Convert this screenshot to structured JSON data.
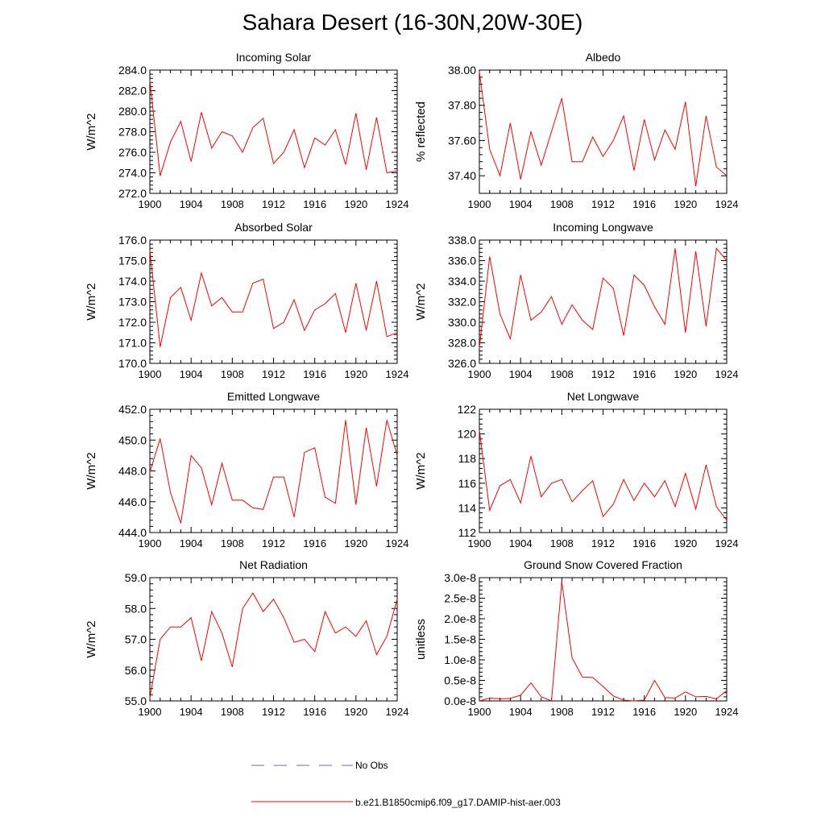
{
  "title": "Sahara Desert (16-30N,20W-30E)",
  "colors": {
    "model": "#ff0000",
    "obs": "#6a6ad8",
    "axis": "#000000"
  },
  "legend": {
    "obs_label": "No Obs",
    "model_label": "b.e21.B1850cmip6.f09_g17.DAMIP-hist-aer.003"
  },
  "chart_data": [
    {
      "type": "line",
      "title": "Incoming Solar",
      "ylabel": "W/m^2",
      "xlim": [
        1900,
        1924
      ],
      "ylim": [
        272,
        284
      ],
      "xticks": [
        1900,
        1904,
        1908,
        1912,
        1916,
        1920,
        1924
      ],
      "xtick_labels": [
        "1900",
        "1904",
        "1908",
        "1912",
        "1916",
        "1920",
        "1924"
      ],
      "yticks": [
        272,
        274,
        276,
        278,
        280,
        282,
        284
      ],
      "ytick_labels": [
        "272.0",
        "274.0",
        "276.0",
        "278.0",
        "280.0",
        "282.0",
        "284.0"
      ],
      "x": [
        1900,
        1901,
        1902,
        1903,
        1904,
        1905,
        1906,
        1907,
        1908,
        1909,
        1910,
        1911,
        1912,
        1913,
        1914,
        1915,
        1916,
        1917,
        1918,
        1919,
        1920,
        1921,
        1922,
        1923,
        1924
      ],
      "series": [
        {
          "name": "b.e21.B1850cmip6.f09_g17.DAMIP-hist-aer.003",
          "values": [
            283.0,
            273.7,
            277.0,
            279.0,
            275.1,
            279.9,
            276.4,
            278.0,
            277.6,
            276.0,
            278.4,
            279.3,
            274.9,
            276.0,
            278.2,
            274.5,
            277.4,
            276.7,
            278.2,
            274.8,
            279.8,
            274.3,
            279.4,
            274.0,
            274.2
          ]
        }
      ]
    },
    {
      "type": "line",
      "title": "Albedo",
      "ylabel": "% reflected",
      "xlim": [
        1900,
        1924
      ],
      "ylim": [
        37.3,
        38.0
      ],
      "xticks": [
        1900,
        1904,
        1908,
        1912,
        1916,
        1920,
        1924
      ],
      "xtick_labels": [
        "1900",
        "1904",
        "1908",
        "1912",
        "1916",
        "1920",
        "1924"
      ],
      "yticks": [
        37.4,
        37.6,
        37.8,
        38.0
      ],
      "ytick_labels": [
        "37.40",
        "37.60",
        "37.80",
        "38.00"
      ],
      "x": [
        1900,
        1901,
        1902,
        1903,
        1904,
        1905,
        1906,
        1907,
        1908,
        1909,
        1910,
        1911,
        1912,
        1913,
        1914,
        1915,
        1916,
        1917,
        1918,
        1919,
        1920,
        1921,
        1922,
        1923,
        1924
      ],
      "series": [
        {
          "name": "b.e21.B1850cmip6.f09_g17.DAMIP-hist-aer.003",
          "values": [
            37.99,
            37.55,
            37.4,
            37.7,
            37.38,
            37.65,
            37.46,
            37.65,
            37.84,
            37.48,
            37.48,
            37.62,
            37.51,
            37.6,
            37.74,
            37.43,
            37.72,
            37.49,
            37.66,
            37.55,
            37.82,
            37.34,
            37.74,
            37.45,
            37.4
          ]
        }
      ]
    },
    {
      "type": "line",
      "title": "Absorbed Solar",
      "ylabel": "W/m^2",
      "xlim": [
        1900,
        1924
      ],
      "ylim": [
        170,
        176
      ],
      "xticks": [
        1900,
        1904,
        1908,
        1912,
        1916,
        1920,
        1924
      ],
      "xtick_labels": [
        "1900",
        "1904",
        "1908",
        "1912",
        "1916",
        "1920",
        "1924"
      ],
      "yticks": [
        170,
        171,
        172,
        173,
        174,
        175,
        176
      ],
      "ytick_labels": [
        "170.0",
        "171.0",
        "172.0",
        "173.0",
        "174.0",
        "175.0",
        "176.0"
      ],
      "x": [
        1900,
        1901,
        1902,
        1903,
        1904,
        1905,
        1906,
        1907,
        1908,
        1909,
        1910,
        1911,
        1912,
        1913,
        1914,
        1915,
        1916,
        1917,
        1918,
        1919,
        1920,
        1921,
        1922,
        1923,
        1924
      ],
      "series": [
        {
          "name": "b.e21.B1850cmip6.f09_g17.DAMIP-hist-aer.003",
          "values": [
            175.5,
            170.8,
            173.2,
            173.7,
            172.1,
            174.4,
            172.8,
            173.2,
            172.5,
            172.5,
            173.9,
            174.1,
            171.7,
            172.0,
            173.1,
            171.6,
            172.6,
            172.9,
            173.4,
            171.5,
            173.9,
            171.6,
            174.0,
            171.3,
            171.5
          ]
        }
      ]
    },
    {
      "type": "line",
      "title": "Incoming Longwave",
      "ylabel": "W/m^2",
      "xlim": [
        1900,
        1924
      ],
      "ylim": [
        326,
        338
      ],
      "xticks": [
        1900,
        1904,
        1908,
        1912,
        1916,
        1920,
        1924
      ],
      "xtick_labels": [
        "1900",
        "1904",
        "1908",
        "1912",
        "1916",
        "1920",
        "1924"
      ],
      "yticks": [
        326,
        328,
        330,
        332,
        334,
        336,
        338
      ],
      "ytick_labels": [
        "326.0",
        "328.0",
        "330.0",
        "332.0",
        "334.0",
        "336.0",
        "338.0"
      ],
      "x": [
        1900,
        1901,
        1902,
        1903,
        1904,
        1905,
        1906,
        1907,
        1908,
        1909,
        1910,
        1911,
        1912,
        1913,
        1914,
        1915,
        1916,
        1917,
        1918,
        1919,
        1920,
        1921,
        1922,
        1923,
        1924
      ],
      "series": [
        {
          "name": "b.e21.B1850cmip6.f09_g17.DAMIP-hist-aer.003",
          "values": [
            327.5,
            336.4,
            330.8,
            328.4,
            334.6,
            330.2,
            331.0,
            332.5,
            329.8,
            331.7,
            330.2,
            329.3,
            334.3,
            333.3,
            328.7,
            334.6,
            333.6,
            331.5,
            329.8,
            337.2,
            329.0,
            336.9,
            329.6,
            337.2,
            336.0
          ]
        }
      ]
    },
    {
      "type": "line",
      "title": "Emitted Longwave",
      "ylabel": "W/m^2",
      "xlim": [
        1900,
        1924
      ],
      "ylim": [
        444,
        452
      ],
      "xticks": [
        1900,
        1904,
        1908,
        1912,
        1916,
        1920,
        1924
      ],
      "xtick_labels": [
        "1900",
        "1904",
        "1908",
        "1912",
        "1916",
        "1920",
        "1924"
      ],
      "yticks": [
        444,
        446,
        448,
        450,
        452
      ],
      "ytick_labels": [
        "444.0",
        "446.0",
        "448.0",
        "450.0",
        "452.0"
      ],
      "x": [
        1900,
        1901,
        1902,
        1903,
        1904,
        1905,
        1906,
        1907,
        1908,
        1909,
        1910,
        1911,
        1912,
        1913,
        1914,
        1915,
        1916,
        1917,
        1918,
        1919,
        1920,
        1921,
        1922,
        1923,
        1924
      ],
      "series": [
        {
          "name": "b.e21.B1850cmip6.f09_g17.DAMIP-hist-aer.003",
          "values": [
            447.9,
            450.1,
            446.6,
            444.6,
            449.0,
            448.2,
            445.8,
            448.5,
            446.1,
            446.1,
            445.6,
            445.5,
            447.6,
            447.6,
            445.0,
            449.2,
            449.5,
            446.3,
            445.9,
            451.3,
            445.8,
            450.8,
            447.0,
            451.3,
            449.0
          ]
        }
      ]
    },
    {
      "type": "line",
      "title": "Net Longwave",
      "ylabel": "W/m^2",
      "xlim": [
        1900,
        1924
      ],
      "ylim": [
        112,
        122
      ],
      "xticks": [
        1900,
        1904,
        1908,
        1912,
        1916,
        1920,
        1924
      ],
      "xtick_labels": [
        "1900",
        "1904",
        "1908",
        "1912",
        "1916",
        "1920",
        "1924"
      ],
      "yticks": [
        112,
        114,
        116,
        118,
        120,
        122
      ],
      "ytick_labels": [
        "112",
        "114",
        "116",
        "118",
        "120",
        "122"
      ],
      "x": [
        1900,
        1901,
        1902,
        1903,
        1904,
        1905,
        1906,
        1907,
        1908,
        1909,
        1910,
        1911,
        1912,
        1913,
        1914,
        1915,
        1916,
        1917,
        1918,
        1919,
        1920,
        1921,
        1922,
        1923,
        1924
      ],
      "series": [
        {
          "name": "b.e21.B1850cmip6.f09_g17.DAMIP-hist-aer.003",
          "values": [
            120.3,
            113.8,
            115.8,
            116.3,
            114.4,
            118.2,
            114.9,
            116.0,
            116.3,
            114.5,
            115.4,
            116.2,
            113.3,
            114.3,
            116.3,
            114.6,
            116.0,
            114.9,
            116.2,
            114.1,
            116.8,
            113.9,
            117.5,
            114.1,
            113.0
          ]
        }
      ]
    },
    {
      "type": "line",
      "title": "Net Radiation",
      "ylabel": "W/m^2",
      "xlim": [
        1900,
        1924
      ],
      "ylim": [
        55,
        59
      ],
      "xticks": [
        1900,
        1904,
        1908,
        1912,
        1916,
        1920,
        1924
      ],
      "xtick_labels": [
        "1900",
        "1904",
        "1908",
        "1912",
        "1916",
        "1920",
        "1924"
      ],
      "yticks": [
        55,
        56,
        57,
        58,
        59
      ],
      "ytick_labels": [
        "55.0",
        "56.0",
        "57.0",
        "58.0",
        "59.0"
      ],
      "x": [
        1900,
        1901,
        1902,
        1903,
        1904,
        1905,
        1906,
        1907,
        1908,
        1909,
        1910,
        1911,
        1912,
        1913,
        1914,
        1915,
        1916,
        1917,
        1918,
        1919,
        1920,
        1921,
        1922,
        1923,
        1924
      ],
      "series": [
        {
          "name": "b.e21.B1850cmip6.f09_g17.DAMIP-hist-aer.003",
          "values": [
            55.1,
            57.0,
            57.4,
            57.4,
            57.7,
            56.3,
            57.9,
            57.2,
            56.1,
            58.0,
            58.5,
            57.9,
            58.3,
            57.7,
            56.9,
            57.0,
            56.6,
            57.9,
            57.2,
            57.4,
            57.1,
            57.6,
            56.5,
            57.1,
            58.3
          ]
        }
      ]
    },
    {
      "type": "line",
      "title": "Ground Snow Covered Fraction",
      "ylabel": "unitless",
      "xlim": [
        1900,
        1924
      ],
      "ylim": [
        0,
        3e-08
      ],
      "xticks": [
        1900,
        1904,
        1908,
        1912,
        1916,
        1920,
        1924
      ],
      "xtick_labels": [
        "1900",
        "1904",
        "1908",
        "1912",
        "1916",
        "1920",
        "1924"
      ],
      "yticks": [
        0,
        5e-09,
        1e-08,
        1.5e-08,
        2e-08,
        2.5e-08,
        3e-08
      ],
      "ytick_labels": [
        "0.0e-8",
        "0.5e-8",
        "1.0e-8",
        "1.5e-8",
        "2.0e-8",
        "2.5e-8",
        "3.0e-8"
      ],
      "x": [
        1900,
        1901,
        1902,
        1903,
        1904,
        1905,
        1906,
        1907,
        1908,
        1909,
        1910,
        1911,
        1912,
        1913,
        1914,
        1915,
        1916,
        1917,
        1918,
        1919,
        1920,
        1921,
        1922,
        1923,
        1924
      ],
      "series": [
        {
          "name": "b.e21.B1850cmip6.f09_g17.DAMIP-hist-aer.003",
          "values": [
            0.0,
            7e-10,
            5e-10,
            6e-10,
            1.4e-09,
            4.4e-09,
            1e-09,
            0.0,
            2.9e-08,
            1.05e-08,
            5.8e-09,
            5.7e-09,
            3.5e-09,
            1.2e-09,
            2e-10,
            0.0,
            2e-10,
            5e-09,
            8e-10,
            7e-10,
            2.2e-09,
            1e-09,
            1.1e-09,
            5e-10,
            2.5e-09
          ]
        }
      ]
    }
  ]
}
